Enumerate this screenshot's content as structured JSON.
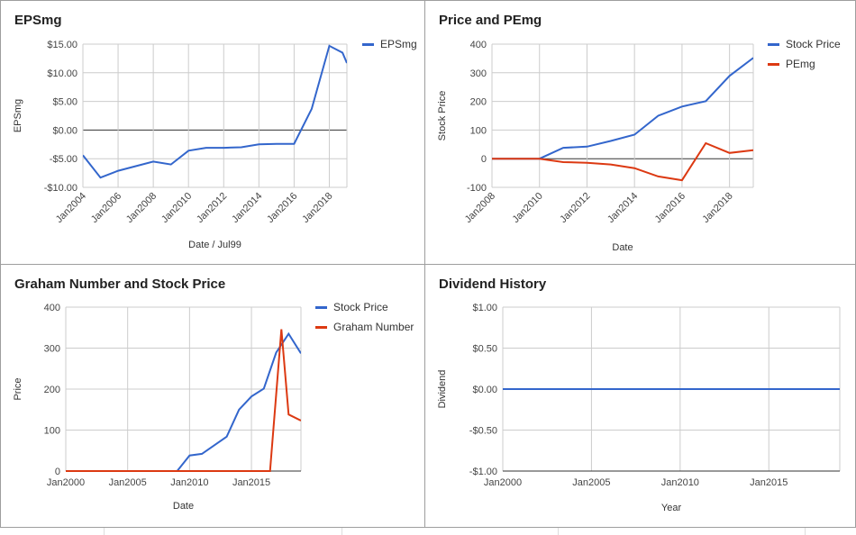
{
  "colors": {
    "blue": "#3366cc",
    "red": "#dc3912"
  },
  "chart_data": [
    {
      "id": "eps",
      "type": "line",
      "title": "EPSmg",
      "xlabel": "Date / Jul99",
      "ylabel": "EPSmg",
      "x_axis": "date",
      "xticks": [
        "Jan2004",
        "Jan2006",
        "Jan2008",
        "Jan2010",
        "Jan2012",
        "Jan2014",
        "Jan2016",
        "Jan2018"
      ],
      "xlim": [
        "2004-01",
        "2019-01"
      ],
      "ylim": [
        -10,
        15
      ],
      "yticks": [
        -10,
        -5,
        0,
        5,
        10,
        15
      ],
      "ytick_labels": [
        "-$10.00",
        "-$5.00",
        "$0.00",
        "$5.00",
        "$10.00",
        "$15.00"
      ],
      "legend_position": "right",
      "series": [
        {
          "name": "EPSmg",
          "color": "#3366cc",
          "x": [
            "2004-01",
            "2005-01",
            "2006-01",
            "2007-01",
            "2008-01",
            "2009-01",
            "2010-01",
            "2011-01",
            "2012-01",
            "2013-01",
            "2014-01",
            "2015-01",
            "2016-01",
            "2017-01",
            "2018-01",
            "2018-10",
            "2019-01"
          ],
          "y": [
            -4.4,
            -8.3,
            -7.1,
            -6.3,
            -5.5,
            -6.0,
            -3.6,
            -3.1,
            -3.1,
            -3.0,
            -2.5,
            -2.4,
            -2.4,
            3.7,
            14.7,
            13.5,
            11.7
          ]
        }
      ]
    },
    {
      "id": "price",
      "type": "line",
      "title": "Price and PEmg",
      "xlabel": "Date",
      "ylabel": "Stock Price",
      "x_axis": "date",
      "xticks": [
        "Jan2008",
        "Jan2010",
        "Jan2012",
        "Jan2014",
        "Jan2016",
        "Jan2018"
      ],
      "xlim": [
        "2008-01",
        "2019-01"
      ],
      "ylim": [
        -100,
        400
      ],
      "yticks": [
        -100,
        0,
        100,
        200,
        300,
        400
      ],
      "ytick_labels": [
        "-100",
        "0",
        "100",
        "200",
        "300",
        "400"
      ],
      "legend_position": "right",
      "series": [
        {
          "name": "Stock Price",
          "color": "#3366cc",
          "x": [
            "2008-01",
            "2010-01",
            "2011-01",
            "2012-01",
            "2013-01",
            "2014-01",
            "2015-01",
            "2016-01",
            "2017-01",
            "2018-01",
            "2019-01"
          ],
          "y": [
            0,
            0,
            38,
            42,
            62,
            84,
            150,
            182,
            201,
            289,
            352
          ]
        },
        {
          "name": "PEmg",
          "color": "#dc3912",
          "x": [
            "2008-01",
            "2010-01",
            "2011-01",
            "2012-01",
            "2013-01",
            "2014-01",
            "2015-01",
            "2016-01",
            "2017-01",
            "2018-01",
            "2019-01"
          ],
          "y": [
            0,
            0,
            -12,
            -14,
            -20,
            -33,
            -62,
            -75,
            54,
            20,
            30
          ]
        }
      ]
    },
    {
      "id": "graham",
      "type": "line",
      "title": "Graham Number and Stock Price",
      "xlabel": "Date",
      "ylabel": "Price",
      "x_axis": "date",
      "xticks": [
        "Jan2000",
        "Jan2005",
        "Jan2010",
        "Jan2015"
      ],
      "xlim": [
        "2000-01",
        "2019-01"
      ],
      "ylim": [
        0,
        400
      ],
      "yticks": [
        0,
        100,
        200,
        300,
        400
      ],
      "ytick_labels": [
        "0",
        "100",
        "200",
        "300",
        "400"
      ],
      "legend_position": "right",
      "series": [
        {
          "name": "Stock Price",
          "color": "#3366cc",
          "x": [
            "2000-01",
            "2009-01",
            "2010-01",
            "2011-01",
            "2013-01",
            "2014-01",
            "2015-01",
            "2016-01",
            "2017-01",
            "2018-01",
            "2019-01"
          ],
          "y": [
            0,
            0,
            38,
            42,
            84,
            150,
            182,
            201,
            289,
            335,
            287
          ]
        },
        {
          "name": "Graham Number",
          "color": "#dc3912",
          "x": [
            "2000-01",
            "2016-07",
            "2017-06",
            "2018-01",
            "2019-01"
          ],
          "y": [
            0,
            0,
            346,
            138,
            123
          ]
        }
      ]
    },
    {
      "id": "dividend",
      "type": "line",
      "title": "Dividend History",
      "xlabel": "Year",
      "ylabel": "Dividend",
      "x_axis": "date",
      "xticks": [
        "Jan2000",
        "Jan2005",
        "Jan2010",
        "Jan2015"
      ],
      "xlim": [
        "2000-01",
        "2019-01"
      ],
      "ylim": [
        -1,
        1
      ],
      "yticks": [
        -1,
        -0.5,
        0,
        0.5,
        1
      ],
      "ytick_labels": [
        "-$1.00",
        "-$0.50",
        "$0.00",
        "$0.50",
        "$1.00"
      ],
      "legend_position": "none",
      "series": [
        {
          "name": "",
          "color": "#3366cc",
          "x": [
            "2000-01",
            "2019-01"
          ],
          "y": [
            0,
            0
          ]
        }
      ]
    }
  ]
}
